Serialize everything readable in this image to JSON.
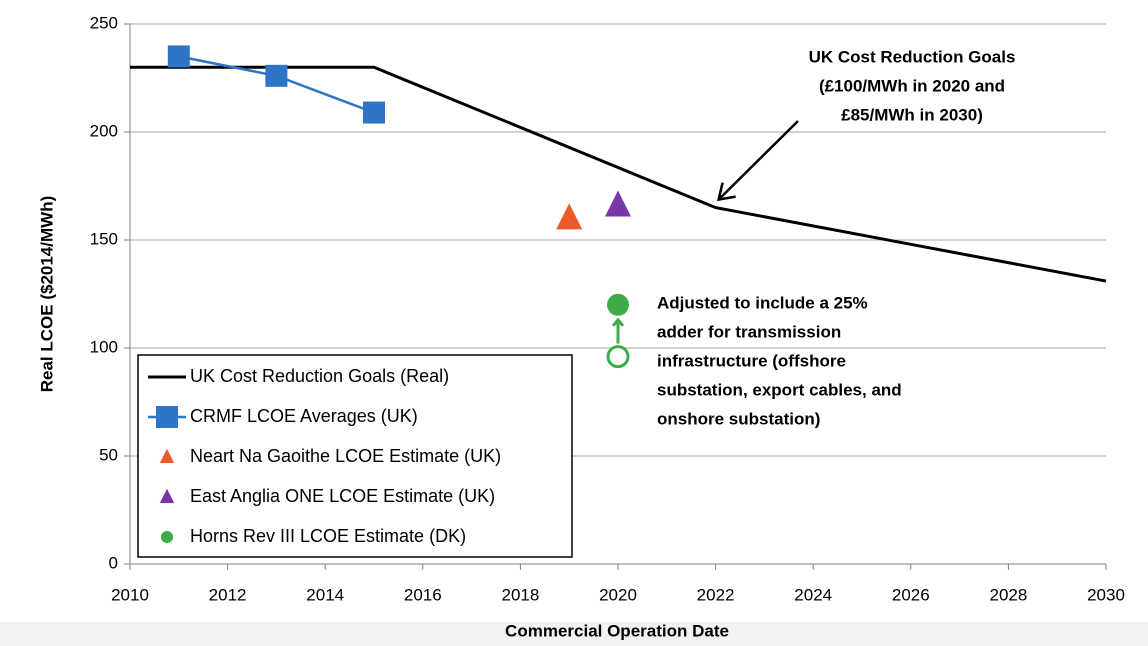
{
  "chart_data": {
    "type": "line",
    "xlabel": "Commercial Operation Date",
    "ylabel": "Real LCOE ($2014/MWh)",
    "xlim": [
      2010,
      2030
    ],
    "xticks": [
      2010,
      2012,
      2014,
      2016,
      2018,
      2020,
      2022,
      2024,
      2026,
      2028,
      2030
    ],
    "ylim": [
      0,
      250
    ],
    "yticks": [
      0,
      50,
      100,
      150,
      200,
      250
    ],
    "grid": true,
    "legend": "lower left",
    "series": [
      {
        "name": "UK Cost Reduction Goals (Real)",
        "color": "#000000",
        "marker": "none",
        "line": true,
        "x": [
          2010,
          2015,
          2022,
          2026,
          2030
        ],
        "values": [
          230,
          230,
          165,
          148,
          131
        ]
      },
      {
        "name": "CRMF LCOE Averages (UK)",
        "color": "#2e75c8",
        "marker": "square",
        "line": true,
        "x": [
          2011,
          2013,
          2015
        ],
        "values": [
          235,
          226,
          209
        ]
      },
      {
        "name": "Neart Na Gaoithe LCOE Estimate (UK)",
        "color": "#ea5a2a",
        "marker": "triangle",
        "line": false,
        "x": [
          2019
        ],
        "values": [
          160
        ]
      },
      {
        "name": "East Anglia ONE LCOE Estimate (UK)",
        "color": "#7a35a8",
        "marker": "triangle",
        "line": false,
        "x": [
          2020
        ],
        "values": [
          166
        ]
      },
      {
        "name": "Horns Rev III LCOE Estimate (DK)",
        "color": "#3dab4a",
        "marker": "circle",
        "line": false,
        "x": [
          2020
        ],
        "values": [
          120
        ],
        "unadjusted": [
          96
        ]
      }
    ],
    "annotations": [
      {
        "lines": [
          "UK Cost Reduction Goals",
          "(£100/MWh in 2020 and",
          "£85/MWh in 2030)"
        ],
        "color": "#000000",
        "x": 2022,
        "y": 165
      },
      {
        "lines": [
          "Adjusted to include a 25%",
          "adder for transmission",
          "infrastructure (offshore",
          "substation, export cables, and",
          "onshore substation)"
        ],
        "color": "#3dab4a"
      }
    ]
  }
}
